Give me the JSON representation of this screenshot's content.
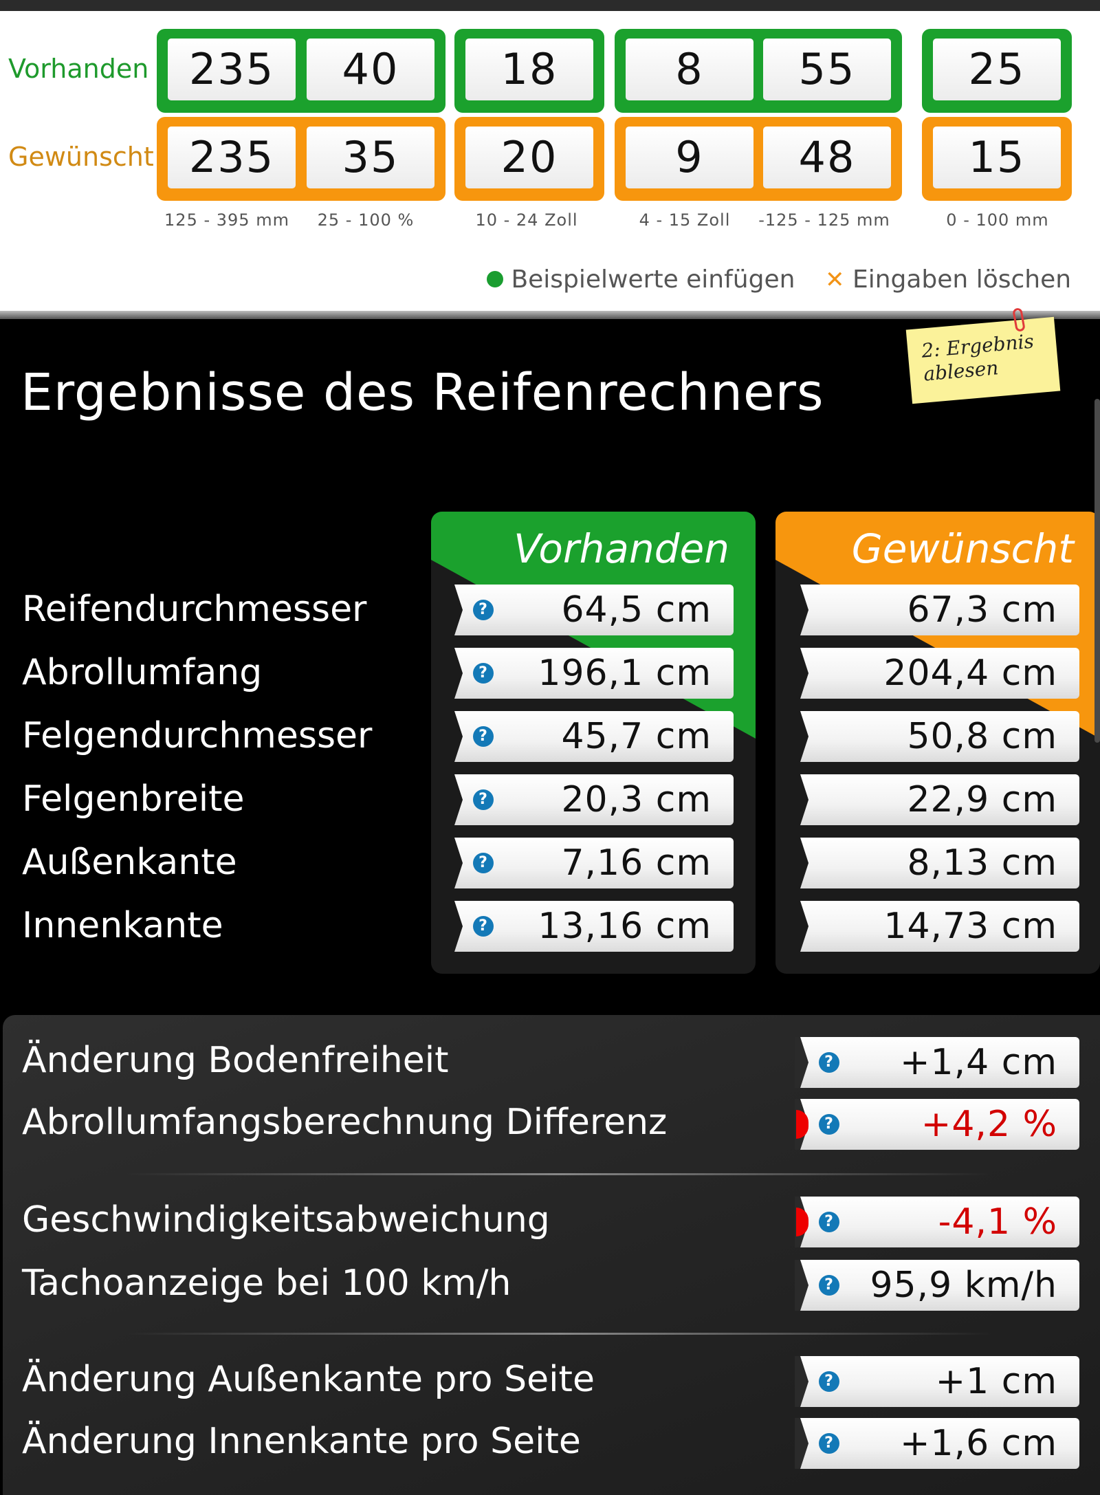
{
  "inputs": {
    "label_vorhanden": "Vorhanden",
    "label_gewuenscht": "Gewünscht",
    "vorhanden": {
      "breite": "235",
      "querschnitt": "40",
      "zoll": "18",
      "felgenbreite": "8",
      "et": "55",
      "distanz": "25"
    },
    "gewuenscht": {
      "breite": "235",
      "querschnitt": "35",
      "zoll": "20",
      "felgenbreite": "9",
      "et": "48",
      "distanz": "15"
    },
    "ranges": {
      "breite": "125 - 395 mm",
      "querschnitt": "25 - 100 %",
      "zoll": "10 - 24 Zoll",
      "felgenbreite": "4 - 15 Zoll",
      "et": "-125 - 125 mm",
      "distanz": "0 - 100 mm"
    },
    "example_label": "Beispielwerte einfügen",
    "clear_label": "Eingaben löschen"
  },
  "results": {
    "title": "Ergebnisse des Reifenrechners",
    "sticky_note": "2: Ergebnis ablesen",
    "col_vorhanden": "Vorhanden",
    "col_gewuenscht": "Gewünscht",
    "rows": [
      {
        "name": "Reifendurchmesser",
        "vorhanden": "64,5 cm",
        "gewuenscht": "67,3 cm"
      },
      {
        "name": "Abrollumfang",
        "vorhanden": "196,1 cm",
        "gewuenscht": "204,4 cm"
      },
      {
        "name": "Felgendurchmesser",
        "vorhanden": "45,7 cm",
        "gewuenscht": "50,8 cm"
      },
      {
        "name": "Felgenbreite",
        "vorhanden": "20,3 cm",
        "gewuenscht": "22,9 cm"
      },
      {
        "name": "Außenkante",
        "vorhanden": "7,16 cm",
        "gewuenscht": "8,13 cm"
      },
      {
        "name": "Innenkante",
        "vorhanden": "13,16 cm",
        "gewuenscht": "14,73 cm"
      }
    ]
  },
  "changes": [
    {
      "name": "Änderung Bodenfreiheit",
      "value": "+1,4 cm",
      "warning": false
    },
    {
      "name": "Abrollumfangsberechnung Differenz",
      "value": "+4,2 %",
      "warning": true
    },
    {
      "name": "Geschwindigkeitsabweichung",
      "value": "-4,1 %",
      "warning": true
    },
    {
      "name": "Tachoanzeige bei 100 km/h",
      "value": "95,9 km/h",
      "warning": false
    },
    {
      "name": "Änderung Außenkante pro Seite",
      "value": "+1 cm",
      "warning": false
    },
    {
      "name": "Änderung Innenkante pro Seite",
      "value": "+1,6 cm",
      "warning": false
    }
  ],
  "help_icon_text": "?",
  "colors": {
    "green": "#1ba12d",
    "orange": "#f7960e",
    "warning_red": "#d20000",
    "help_blue": "#1379b7"
  }
}
